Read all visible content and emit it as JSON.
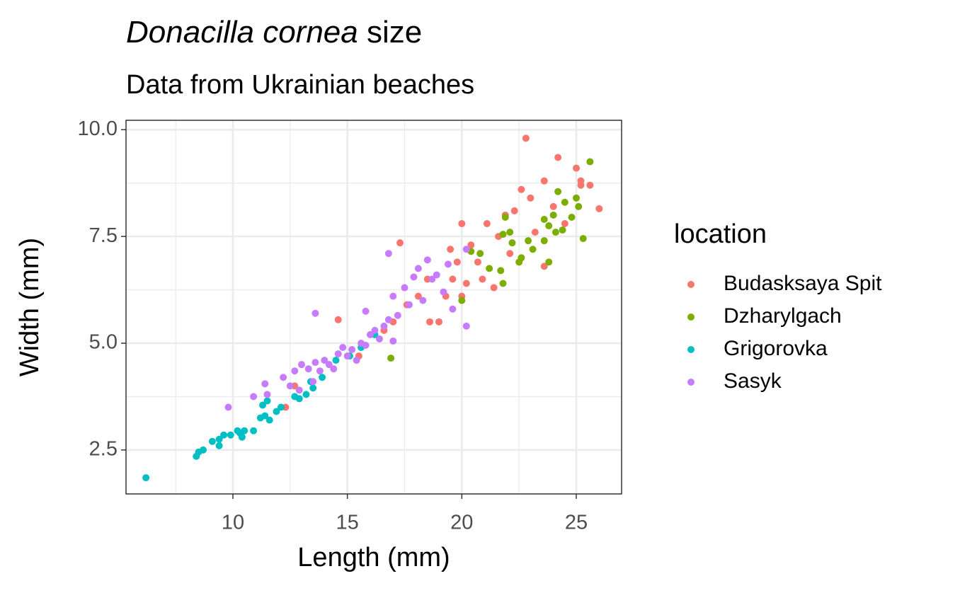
{
  "chart_data": {
    "type": "scatter",
    "title": {
      "italic": "Donacilla cornea",
      "plain": "size"
    },
    "subtitle": "Data from Ukrainian beaches",
    "x_label": "Length (mm)",
    "y_label": "Width (mm)",
    "legend_title": "location",
    "legend_position": "right",
    "grid": true,
    "xlim": [
      5.33,
      26.98
    ],
    "ylim": [
      1.47,
      10.22
    ],
    "xticks": [
      10,
      15,
      20,
      25
    ],
    "yticks": [
      {
        "value": 2.5,
        "label": "2.5"
      },
      {
        "value": 5,
        "label": "5.0"
      },
      {
        "value": 7.5,
        "label": "7.5"
      },
      {
        "value": 10,
        "label": "10.0"
      }
    ],
    "xminor": [
      7.5,
      12.5,
      17.5,
      22.5
    ],
    "yminor": [
      3.75,
      6.25,
      8.75
    ],
    "series": [
      {
        "name": "Budasksaya Spit",
        "color": "#F8766D",
        "x": [
          12.3,
          12.7,
          14.6,
          15.5,
          16.6,
          17.0,
          17.3,
          17.6,
          18.1,
          18.5,
          18.6,
          19.0,
          19.3,
          19.5,
          19.6,
          19.8,
          20.0,
          20.0,
          20.2,
          20.4,
          20.7,
          20.9,
          21.1,
          21.4,
          21.6,
          21.9,
          22.1,
          22.3,
          22.6,
          22.8,
          23.0,
          23.2,
          23.6,
          23.6,
          24.0,
          24.2,
          24.5,
          25.0,
          25.2,
          25.6,
          26.0,
          25.2
        ],
        "y": [
          3.5,
          4.0,
          5.55,
          4.7,
          5.3,
          5.5,
          7.35,
          5.9,
          6.1,
          6.5,
          5.5,
          5.5,
          6.1,
          7.2,
          6.5,
          6.9,
          7.8,
          6.1,
          6.4,
          7.3,
          6.9,
          6.5,
          7.8,
          6.3,
          7.5,
          8.0,
          7.1,
          8.1,
          8.6,
          9.8,
          8.4,
          7.6,
          8.8,
          6.8,
          8.2,
          9.35,
          7.8,
          9.1,
          8.7,
          8.7,
          8.15,
          8.8
        ]
      },
      {
        "name": "Dzharylgach",
        "color": "#7CAE00",
        "x": [
          16.9,
          20.0,
          20.4,
          20.8,
          21.2,
          21.7,
          21.8,
          21.8,
          22.1,
          22.2,
          22.6,
          22.5,
          22.9,
          23.1,
          23.6,
          23.6,
          23.8,
          23.8,
          24.0,
          24.1,
          24.2,
          24.5,
          24.8,
          25.0,
          25.1,
          25.3,
          25.6,
          24.4,
          21.9
        ],
        "y": [
          4.65,
          6.0,
          7.15,
          7.1,
          6.75,
          6.7,
          6.4,
          7.55,
          7.6,
          7.35,
          7.0,
          6.9,
          7.4,
          7.2,
          7.9,
          7.4,
          6.9,
          7.75,
          8.0,
          7.6,
          8.55,
          8.3,
          7.95,
          8.4,
          8.2,
          7.45,
          9.25,
          7.65,
          7.95
        ]
      },
      {
        "name": "Grigorovka",
        "color": "#00BFC4",
        "x": [
          6.2,
          8.4,
          8.5,
          8.7,
          9.1,
          9.4,
          9.4,
          9.6,
          9.9,
          10.2,
          10.3,
          10.4,
          10.5,
          10.9,
          11.2,
          11.3,
          11.4,
          11.5,
          11.6,
          11.9,
          12.1,
          12.7,
          12.9,
          13.2,
          13.5,
          13.4,
          13.9,
          14.5,
          15.1,
          15.6,
          16.2
        ],
        "y": [
          1.85,
          2.35,
          2.45,
          2.5,
          2.7,
          2.6,
          2.75,
          2.85,
          2.85,
          2.95,
          2.9,
          2.8,
          2.95,
          2.95,
          3.25,
          3.55,
          3.3,
          3.65,
          3.2,
          3.4,
          3.5,
          3.75,
          3.7,
          3.8,
          3.95,
          4.1,
          4.2,
          4.6,
          4.7,
          4.9,
          5.2
        ]
      },
      {
        "name": "Sasyk",
        "color": "#C77CFF",
        "x": [
          9.8,
          10.9,
          11.4,
          11.5,
          12.2,
          12.5,
          12.7,
          12.9,
          13.0,
          13.3,
          13.5,
          13.6,
          13.8,
          14.0,
          14.2,
          14.4,
          14.6,
          14.8,
          15.0,
          15.2,
          15.4,
          15.6,
          15.8,
          15.8,
          16.0,
          16.2,
          16.4,
          16.6,
          16.8,
          17.0,
          17.2,
          17.5,
          17.7,
          17.9,
          18.1,
          18.3,
          18.5,
          18.7,
          18.9,
          19.2,
          19.4,
          19.6,
          20.2,
          20.2,
          16.8,
          13.6,
          17.0
        ],
        "y": [
          3.5,
          3.75,
          4.05,
          3.8,
          4.2,
          4.0,
          4.35,
          3.9,
          4.5,
          4.4,
          4.1,
          4.55,
          4.35,
          4.6,
          4.5,
          4.4,
          4.75,
          4.9,
          4.7,
          4.85,
          4.6,
          5.0,
          4.95,
          5.75,
          5.2,
          5.3,
          5.1,
          5.4,
          5.55,
          5.05,
          5.65,
          6.3,
          5.9,
          6.55,
          6.75,
          6.0,
          6.95,
          6.5,
          6.6,
          6.2,
          6.85,
          5.8,
          5.4,
          7.2,
          7.1,
          5.7,
          6.1
        ]
      }
    ]
  }
}
